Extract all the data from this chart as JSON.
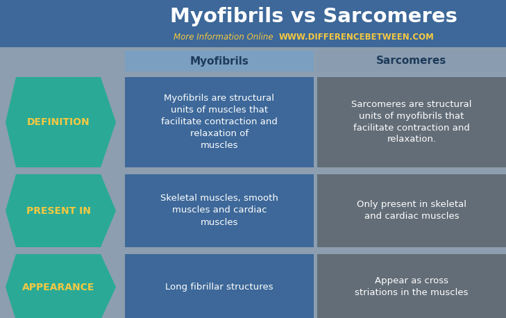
{
  "title": "Myofibrils vs Sarcomeres",
  "subtitle_plain": "More Information Online ",
  "subtitle_url": "WWW.DIFFERENCEBETWEEN.COM",
  "col1_header": "Myofibrils",
  "col2_header": "Sarcomeres",
  "rows": [
    {
      "label": "DEFINITION",
      "col1": "Myofibrils are structural\nunits of muscles that\nfacilitate contraction and\nrelaxation of\nmuscles",
      "col2": "Sarcomeres are structural\nunits of myofibrils that\nfacilitate contraction and\nrelaxation."
    },
    {
      "label": "PRESENT IN",
      "col1": "Skeletal muscles, smooth\nmuscles and cardiac\nmuscles",
      "col2": "Only present in skeletal\nand cardiac muscles"
    },
    {
      "label": "APPEARANCE",
      "col1": "Long fibrillar structures",
      "col2": "Appear as cross\nstriations in the muscles"
    }
  ],
  "bg_color": "#8c9eaf",
  "title_bg": "#3d6899",
  "col1_header_bg": "#7a9fc0",
  "col2_header_bg": "#8a9db0",
  "col1_cell_bg": "#3d6899",
  "col2_cell_bg": "#636d77",
  "arrow_color": "#2aaa96",
  "arrow_label_color": "#f5c842",
  "title_color": "#ffffff",
  "subtitle_plain_color": "#f5c842",
  "subtitle_url_color": "#f5c842",
  "header_text_color": "#1e3a5a",
  "cell_text_color": "#ffffff",
  "title_fontsize": 21,
  "subtitle_fontsize": 8.5,
  "header_fontsize": 11,
  "cell_fontsize": 9.5,
  "arrow_fontsize": 10
}
